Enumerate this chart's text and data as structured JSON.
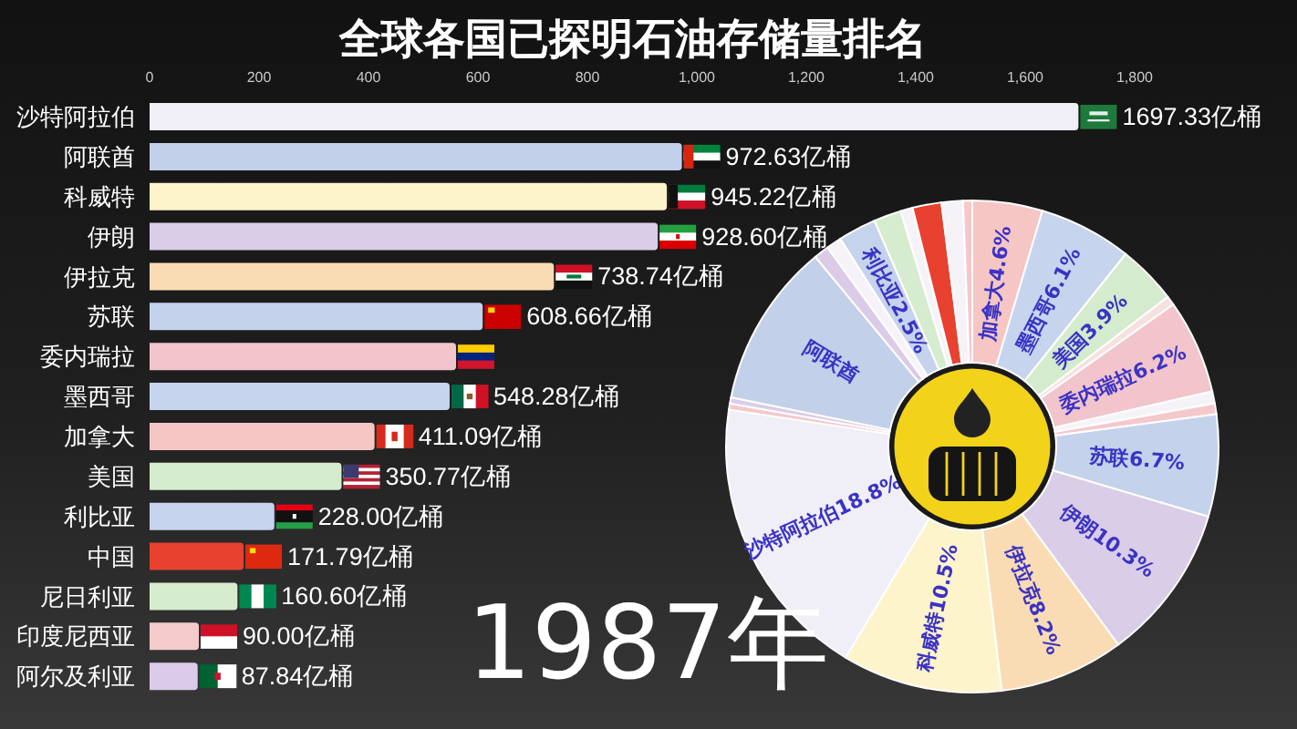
{
  "chart_data": [
    {
      "type": "bar",
      "orientation": "horizontal",
      "title": "全球各国已探明石油存储量排名",
      "categories": [
        "沙特阿拉伯",
        "阿联酋",
        "科威特",
        "伊朗",
        "伊拉克",
        "苏联",
        "委内瑞拉",
        "墨西哥",
        "加拿大",
        "美国",
        "利比亚",
        "中国",
        "尼日利亚",
        "印度尼西亚",
        "阿尔及利亚"
      ],
      "values": [
        1697.33,
        972.63,
        945.22,
        928.6,
        738.74,
        608.66,
        560,
        548.28,
        411.09,
        350.77,
        228.0,
        171.79,
        160.6,
        90.0,
        87.84
      ],
      "colors": [
        "#f0eef6",
        "#c3d0ea",
        "#fdf4cc",
        "#dacde8",
        "#fadcb4",
        "#c5d2ec",
        "#f2c4cc",
        "#c7d4ee",
        "#f5c6c4",
        "#d5ebcd",
        "#c6d3ec",
        "#e8412f",
        "#d6ecce",
        "#f5caca",
        "#dccbe8"
      ],
      "value_labels": [
        "1697.33亿桶",
        "972.63亿桶",
        "945.22亿桶",
        "928.60亿桶",
        "738.74亿桶",
        "608.66亿桶",
        null,
        "548.28亿桶",
        "411.09亿桶",
        "350.77亿桶",
        "228.00亿桶",
        "171.79亿桶",
        "160.60亿桶",
        "90.00亿桶",
        "87.84亿桶"
      ],
      "xlim": [
        0,
        1800
      ],
      "xticks": [
        0,
        200,
        400,
        600,
        800,
        {
          "value": 1000,
          "label": "1,000"
        },
        {
          "value": 1200,
          "label": "1,200"
        },
        {
          "value": 1400,
          "label": "1,400"
        },
        {
          "value": 1600,
          "label": "1,600"
        },
        {
          "value": 1800,
          "label": "1,800"
        }
      ],
      "annotations": [
        "1987年"
      ]
    },
    {
      "type": "donut",
      "categories": [
        "加拿大",
        "墨西哥",
        "美国",
        null,
        "委内瑞拉",
        null,
        null,
        "苏联",
        "伊朗",
        "伊拉克",
        "科威特",
        "沙特阿拉伯",
        null,
        null,
        "阿联酋",
        null,
        null,
        "利比亚",
        null,
        null,
        null,
        null,
        null
      ],
      "values": [
        4.6,
        6.1,
        3.9,
        0.6,
        6.2,
        0.8,
        0.7,
        6.7,
        10.3,
        8.2,
        10.5,
        18.8,
        0.4,
        0.4,
        10.8,
        1.0,
        1.0,
        2.5,
        1.8,
        0.8,
        1.9,
        1.4,
        0.6
      ],
      "colors": [
        "#f5c6c4",
        "#c7d4ee",
        "#d5ebcd",
        "#f7e0e0",
        "#f2c4cc",
        "#f6f3f8",
        "#f5c8cb",
        "#c5d2ec",
        "#dacde8",
        "#fadcb4",
        "#fdf4cc",
        "#f0eef6",
        "#f5c8cb",
        "#dacde8",
        "#c3d0ea",
        "#dccbe8",
        "#f6f3f8",
        "#c6d3ec",
        "#d6ecce",
        "#f6f3f8",
        "#e8412f",
        "#f6f3f8",
        "#f5c8cb"
      ],
      "value_labels": [
        "4.6%",
        "6.1%",
        "3.9%",
        null,
        "6.2%",
        null,
        null,
        "6.7%",
        "10.3%",
        "8.2%",
        "10.5%",
        "18.8%",
        null,
        null,
        null,
        null,
        null,
        "2.5%",
        null,
        null,
        null,
        null,
        null
      ]
    }
  ]
}
